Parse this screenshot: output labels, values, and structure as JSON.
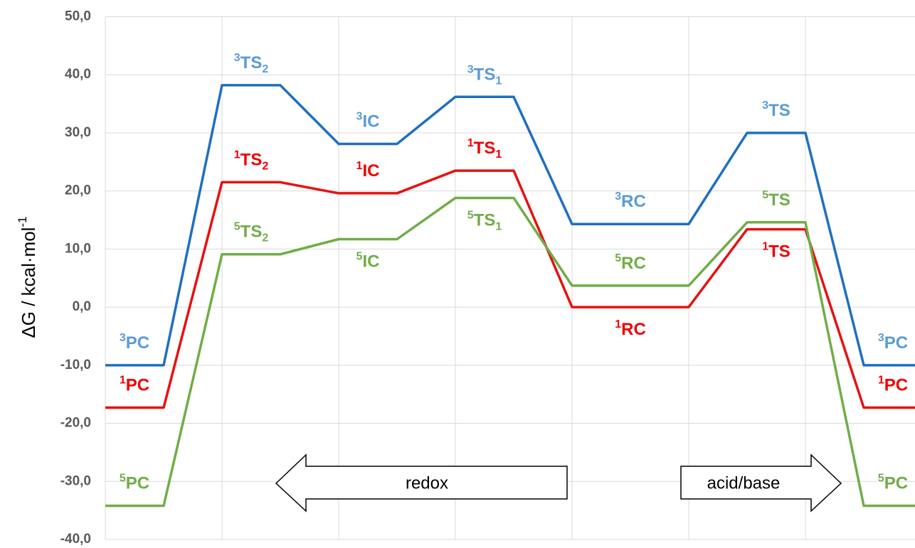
{
  "chart_data": {
    "type": "line",
    "y_label": "ΔG / kcal·mol",
    "y_label_sup": "-1",
    "categories": [
      null,
      null,
      null,
      null,
      null,
      null,
      null,
      null,
      null,
      null,
      null,
      null,
      null,
      null,
      null
    ],
    "ylim": [
      -40,
      50
    ],
    "yticks": [
      {
        "value": -40,
        "label": "-40,0"
      },
      {
        "value": -30,
        "label": "-30,0"
      },
      {
        "value": -20,
        "label": "-20,0"
      },
      {
        "value": -10,
        "label": "-10,0"
      },
      {
        "value": 0,
        "label": "0,0"
      },
      {
        "value": 10,
        "label": "10,0"
      },
      {
        "value": 20,
        "label": "20,0"
      },
      {
        "value": 30,
        "label": "30,0"
      },
      {
        "value": 40,
        "label": "40,0"
      },
      {
        "value": 50,
        "label": "50,0"
      }
    ],
    "grid": true,
    "series": [
      {
        "color": "#1f6fc0",
        "label_color": "#5b9bd5",
        "values": [
          -10,
          -10,
          38.2,
          38.2,
          28.1,
          28.1,
          36.2,
          36.2,
          14.3,
          14.3,
          14.3,
          30.0,
          30.0,
          -10,
          -10
        ],
        "point_labels": [
          {
            "sup": "3",
            "main": "PC"
          },
          null,
          {
            "sup": "3",
            "main": "TS",
            "sub": "2"
          },
          null,
          {
            "sup": "3",
            "main": "IC"
          },
          null,
          {
            "sup": "3",
            "main": "TS",
            "sub": "1"
          },
          null,
          {
            "sup": "3",
            "main": "RC"
          },
          null,
          null,
          {
            "sup": "3",
            "main": "TS"
          },
          null,
          {
            "sup": "3",
            "main": "PC"
          },
          null
        ]
      },
      {
        "color": "#e81010",
        "label_color": "#ee0000",
        "values": [
          -17.3,
          -17.3,
          21.5,
          21.5,
          19.6,
          19.6,
          23.5,
          23.5,
          0,
          0,
          0,
          13.4,
          13.4,
          -17.3,
          -17.3
        ],
        "point_labels": [
          {
            "sup": "1",
            "main": "PC"
          },
          null,
          {
            "sup": "1",
            "main": "TS",
            "sub": "2"
          },
          null,
          {
            "sup": "1",
            "main": "IC"
          },
          null,
          {
            "sup": "1",
            "main": "TS",
            "sub": "1"
          },
          null,
          {
            "sup": "1",
            "main": "RC"
          },
          null,
          null,
          {
            "sup": "1",
            "main": "TS"
          },
          null,
          {
            "sup": "1",
            "main": "PC"
          },
          null
        ]
      },
      {
        "color": "#70ad47",
        "label_color": "#70ad47",
        "values": [
          -34.2,
          -34.2,
          9.1,
          9.1,
          11.7,
          11.7,
          18.8,
          18.8,
          3.7,
          3.7,
          3.7,
          14.6,
          14.6,
          -34.2,
          -34.2
        ],
        "point_labels": [
          {
            "sup": "5",
            "main": "PC"
          },
          null,
          {
            "sup": "5",
            "main": "TS",
            "sub": "2"
          },
          null,
          {
            "sup": "5",
            "main": "IC"
          },
          null,
          {
            "sup": "5",
            "main": "TS",
            "sub": "1"
          },
          null,
          {
            "sup": "5",
            "main": "RC"
          },
          null,
          null,
          {
            "sup": "5",
            "main": "TS"
          },
          null,
          {
            "sup": "5",
            "main": "PC"
          },
          null
        ]
      }
    ],
    "annotations": [
      "redox",
      "acid/base"
    ]
  }
}
